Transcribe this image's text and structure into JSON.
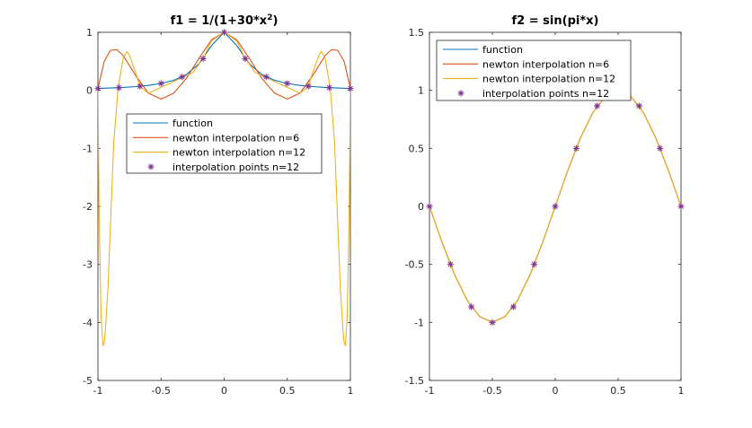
{
  "colors": {
    "function": "#0072BD",
    "newton6": "#D95319",
    "newton12": "#EDB120",
    "points": "#7E2F8E",
    "axis": "#262626"
  },
  "chart_data": [
    {
      "type": "line",
      "title": "f1 = 1/(1+30*x",
      "title_sup": "2",
      "title_end": ")",
      "xlim": [
        -1,
        1
      ],
      "ylim": [
        -5,
        1
      ],
      "xticks": [
        -1,
        -0.5,
        0,
        0.5,
        1
      ],
      "xtick_labels": [
        "-1",
        "-0.5",
        "0",
        "0.5",
        "1"
      ],
      "yticks": [
        -5,
        -4,
        -3,
        -2,
        -1,
        0,
        1
      ],
      "ytick_labels": [
        "-5",
        "-4",
        "-3",
        "-2",
        "-1",
        "0",
        "1"
      ],
      "legend_position": "center",
      "series": [
        {
          "name": "function",
          "kind": "line",
          "color": "#0072BD",
          "x": [
            -1,
            -0.9,
            -0.8,
            -0.7,
            -0.6,
            -0.5,
            -0.4,
            -0.3,
            -0.2,
            -0.1,
            0,
            0.1,
            0.2,
            0.3,
            0.4,
            0.5,
            0.6,
            0.7,
            0.8,
            0.9,
            1
          ],
          "y": [
            0.032,
            0.04,
            0.05,
            0.064,
            0.085,
            0.118,
            0.172,
            0.27,
            0.455,
            0.769,
            1,
            0.769,
            0.455,
            0.27,
            0.172,
            0.118,
            0.085,
            0.064,
            0.05,
            0.04,
            0.032
          ]
        },
        {
          "name": "newton interpolation n=6",
          "kind": "line",
          "color": "#D95319",
          "x": [
            -1,
            -0.95,
            -0.9,
            -0.85,
            -0.8,
            -0.7,
            -0.6,
            -0.5,
            -0.4,
            -0.3,
            -0.2,
            -0.1,
            0,
            0.1,
            0.2,
            0.3,
            0.4,
            0.5,
            0.6,
            0.7,
            0.8,
            0.85,
            0.9,
            0.95,
            1
          ],
          "y": [
            0.032,
            0.5,
            0.69,
            0.7,
            0.6,
            0.25,
            -0.05,
            -0.15,
            -0.05,
            0.2,
            0.55,
            0.87,
            1,
            0.87,
            0.55,
            0.2,
            -0.05,
            -0.15,
            -0.05,
            0.25,
            0.6,
            0.7,
            0.69,
            0.5,
            0.032
          ]
        },
        {
          "name": "newton interpolation n=12",
          "kind": "line",
          "color": "#EDB120",
          "x": [
            -1,
            -0.99,
            -0.975,
            -0.96,
            -0.95,
            -0.94,
            -0.92,
            -0.9,
            -0.875,
            -0.84,
            -0.8,
            -0.77,
            -0.75,
            -0.7,
            -0.667,
            -0.6,
            -0.5,
            -0.4,
            -0.333,
            -0.25,
            -0.167,
            -0.1,
            0,
            0.1,
            0.167,
            0.25,
            0.333,
            0.4,
            0.5,
            0.6,
            0.667,
            0.7,
            0.75,
            0.77,
            0.8,
            0.84,
            0.875,
            0.9,
            0.92,
            0.94,
            0.95,
            0.96,
            0.975,
            0.99,
            1
          ],
          "y": [
            0.032,
            -2.2,
            -3.9,
            -4.4,
            -4.35,
            -4.1,
            -3.4,
            -2.3,
            -0.9,
            0.05,
            0.55,
            0.67,
            0.6,
            0.3,
            0.064,
            -0.05,
            0.05,
            0.15,
            0.22,
            0.3,
            0.545,
            0.85,
            1,
            0.85,
            0.545,
            0.3,
            0.22,
            0.15,
            0.05,
            -0.05,
            0.064,
            0.3,
            0.6,
            0.67,
            0.55,
            0.05,
            -0.9,
            -2.3,
            -3.4,
            -4.1,
            -4.35,
            -4.4,
            -3.9,
            -2.2,
            0.032
          ]
        },
        {
          "name": "interpolation points n=12",
          "kind": "markers",
          "color": "#7E2F8E",
          "x": [
            -1,
            -0.833,
            -0.667,
            -0.5,
            -0.333,
            -0.167,
            0,
            0.167,
            0.333,
            0.5,
            0.667,
            0.833,
            1
          ],
          "y": [
            0.032,
            0.046,
            0.07,
            0.118,
            0.231,
            0.545,
            1,
            0.545,
            0.231,
            0.118,
            0.07,
            0.046,
            0.032
          ]
        }
      ]
    },
    {
      "type": "line",
      "title": "f2 = sin(pi*x)",
      "title_sup": "",
      "title_end": "",
      "xlim": [
        -1,
        1
      ],
      "ylim": [
        -1.5,
        1.5
      ],
      "xticks": [
        -1,
        -0.5,
        0,
        0.5,
        1
      ],
      "xtick_labels": [
        "-1",
        "-0.5",
        "0",
        "0.5",
        "1"
      ],
      "yticks": [
        -1.5,
        -1,
        -0.5,
        0,
        0.5,
        1,
        1.5
      ],
      "ytick_labels": [
        "-1.5",
        "-1",
        "-0.5",
        "0",
        "0.5",
        "1",
        "1.5"
      ],
      "legend_position": "top-left",
      "series": [
        {
          "name": "function",
          "kind": "line",
          "color": "#0072BD",
          "x": [
            -1,
            -0.9,
            -0.8,
            -0.7,
            -0.6,
            -0.5,
            -0.4,
            -0.3,
            -0.2,
            -0.1,
            0,
            0.1,
            0.2,
            0.3,
            0.4,
            0.5,
            0.6,
            0.7,
            0.8,
            0.9,
            1
          ],
          "y": [
            0,
            -0.309,
            -0.588,
            -0.809,
            -0.951,
            -1,
            -0.951,
            -0.809,
            -0.588,
            -0.309,
            0,
            0.309,
            0.588,
            0.809,
            0.951,
            1,
            0.951,
            0.809,
            0.588,
            0.309,
            0
          ]
        },
        {
          "name": "newton interpolation n=6",
          "kind": "line",
          "color": "#D95319",
          "x": [
            -1,
            -0.9,
            -0.8,
            -0.7,
            -0.6,
            -0.5,
            -0.4,
            -0.3,
            -0.2,
            -0.1,
            0,
            0.1,
            0.2,
            0.3,
            0.4,
            0.5,
            0.6,
            0.7,
            0.8,
            0.9,
            1
          ],
          "y": [
            0,
            -0.31,
            -0.59,
            -0.81,
            -0.95,
            -1,
            -0.95,
            -0.81,
            -0.59,
            -0.31,
            0,
            0.31,
            0.59,
            0.81,
            0.95,
            1,
            0.95,
            0.81,
            0.59,
            0.31,
            0
          ]
        },
        {
          "name": "newton interpolation n=12",
          "kind": "line",
          "color": "#EDB120",
          "x": [
            -1,
            -0.9,
            -0.8,
            -0.7,
            -0.6,
            -0.5,
            -0.4,
            -0.3,
            -0.2,
            -0.1,
            0,
            0.1,
            0.2,
            0.3,
            0.4,
            0.5,
            0.6,
            0.7,
            0.8,
            0.9,
            1
          ],
          "y": [
            0,
            -0.309,
            -0.588,
            -0.809,
            -0.951,
            -1,
            -0.951,
            -0.809,
            -0.588,
            -0.309,
            0,
            0.309,
            0.588,
            0.809,
            0.951,
            1,
            0.951,
            0.809,
            0.588,
            0.309,
            0
          ]
        },
        {
          "name": "interpolation points n=12",
          "kind": "markers",
          "color": "#7E2F8E",
          "x": [
            -1,
            -0.833,
            -0.667,
            -0.5,
            -0.333,
            -0.167,
            0,
            0.167,
            0.333,
            0.5,
            0.667,
            0.833,
            1
          ],
          "y": [
            0,
            -0.5,
            -0.866,
            -1,
            -0.866,
            -0.5,
            0,
            0.5,
            0.866,
            1,
            0.866,
            0.5,
            0
          ]
        }
      ]
    }
  ]
}
